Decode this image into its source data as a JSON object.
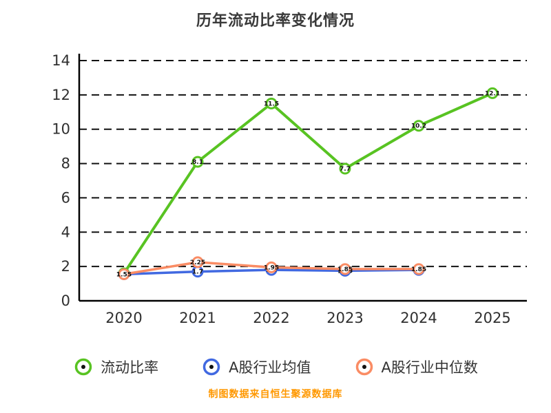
{
  "title": "历年流动比率变化情况",
  "footer_note": "制图数据来自恒生聚源数据库",
  "colors": {
    "title": "#3a3a3a",
    "axis": "#000000",
    "grid": "#111111",
    "tick_label": "#2f2f2f",
    "footer": "#ff9800",
    "background": "#ffffff",
    "marker_fill": "#ffffff",
    "point_label": "#111111"
  },
  "chart_data": {
    "type": "line",
    "title": "历年流动比率变化情况",
    "categories": [
      "2020",
      "2021",
      "2022",
      "2023",
      "2024",
      "2025"
    ],
    "xlabel": "",
    "ylabel": "",
    "ylim": [
      0,
      14
    ],
    "yticks": [
      0,
      2,
      4,
      6,
      8,
      10,
      12,
      14
    ],
    "grid": "dashed-horizontal",
    "legend_position": "bottom",
    "series": [
      {
        "name": "流动比率",
        "color": "#58c322",
        "values": [
          1.6,
          8.1,
          11.5,
          7.7,
          10.2,
          12.1
        ]
      },
      {
        "name": "A股行业均值",
        "color": "#4169e1",
        "values": [
          1.55,
          1.7,
          1.8,
          1.75,
          1.8,
          null
        ]
      },
      {
        "name": "A股行业中位数",
        "color": "#fa8c64",
        "values": [
          1.55,
          2.25,
          1.95,
          1.85,
          1.85,
          null
        ]
      }
    ]
  }
}
